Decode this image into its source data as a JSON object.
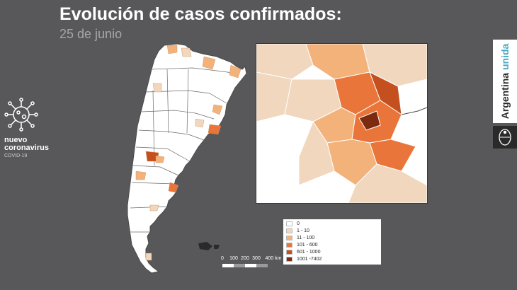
{
  "header": {
    "title": "Evolución de casos confirmados:",
    "subtitle": "25 de junio"
  },
  "left_logo": {
    "line1": "nuevo",
    "line2": "coronavirus",
    "line3": "COVID-19",
    "icon": "virus-icon"
  },
  "brand": {
    "part1": "Argentina ",
    "part2": "unida",
    "icon": "national-seal-icon"
  },
  "scale": {
    "labels": [
      "0",
      "100",
      "200",
      "300",
      "400 km"
    ]
  },
  "legend": {
    "items": [
      {
        "label": "0",
        "color": "#ffffff"
      },
      {
        "label": "1 - 10",
        "color": "#f0d7bd"
      },
      {
        "label": "11 - 100",
        "color": "#f3b27a"
      },
      {
        "label": "101 - 600",
        "color": "#e9753a"
      },
      {
        "label": "601 - 1000",
        "color": "#c4501f"
      },
      {
        "label": "1001 -7402",
        "color": "#7c2a10"
      }
    ]
  }
}
